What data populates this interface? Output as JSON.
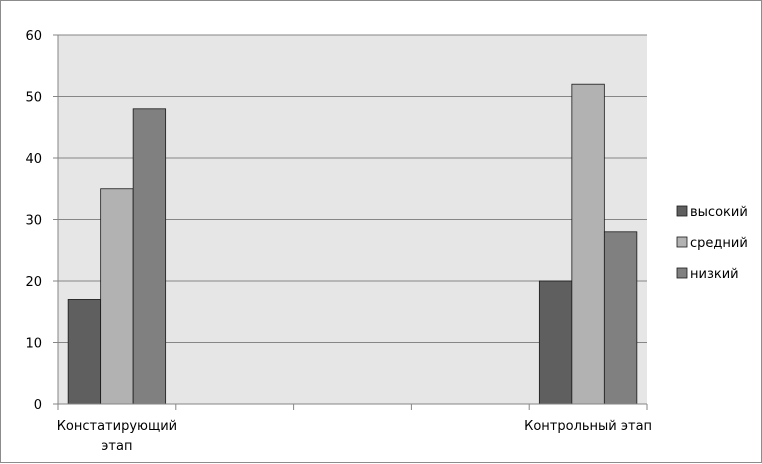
{
  "chart_data": {
    "type": "bar",
    "categories": [
      "Констатирующий этап",
      "",
      "",
      "",
      "Контрольный этап"
    ],
    "category_lines": [
      [
        "Констатирующий",
        "этап"
      ],
      [],
      [],
      [],
      [
        "Контрольный этап"
      ]
    ],
    "series": [
      {
        "name": "высокий",
        "color": "#5f5f5f",
        "values": [
          17,
          null,
          null,
          null,
          20
        ]
      },
      {
        "name": "средний",
        "color": "#b2b2b2",
        "values": [
          35,
          null,
          null,
          null,
          52
        ]
      },
      {
        "name": "низкий",
        "color": "#808080",
        "values": [
          48,
          null,
          null,
          null,
          28
        ]
      }
    ],
    "ylim": [
      0,
      60
    ],
    "yticks": [
      0,
      10,
      20,
      30,
      40,
      50,
      60
    ],
    "grid": true,
    "legend_position": "right",
    "plot_background": "#e6e6e6"
  }
}
